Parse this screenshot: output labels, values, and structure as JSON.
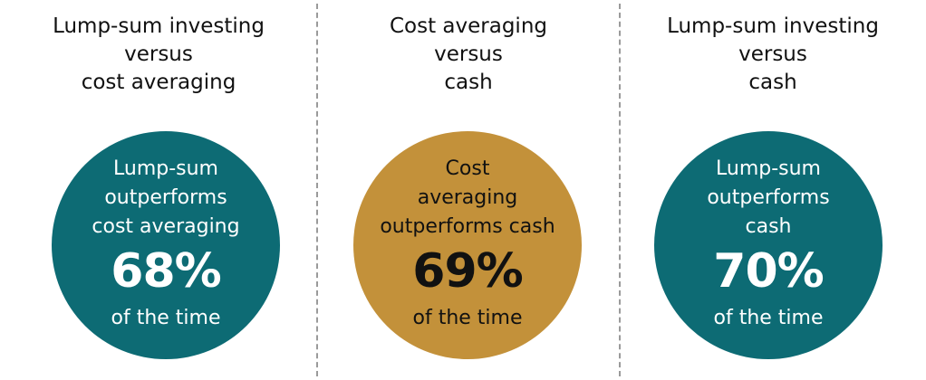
{
  "chart_data": {
    "type": "table",
    "colors": {
      "teal": "#0d6b74",
      "gold": "#c3913a",
      "divider": "#9a9a9a"
    },
    "comparisons": [
      {
        "heading": "Lump-sum investing\nversus\ncost averaging",
        "description": "Lump-sum\noutperforms\ncost averaging",
        "value": 68,
        "value_label": "68%",
        "suffix": "of the time",
        "color": "#0d6b74",
        "text_color": "#ffffff"
      },
      {
        "heading": "Cost averaging\nversus\ncash",
        "description": "Cost\naveraging\noutperforms cash",
        "value": 69,
        "value_label": "69%",
        "suffix": "of the time",
        "color": "#c3913a",
        "text_color": "#111111"
      },
      {
        "heading": "Lump-sum investing\nversus\ncash",
        "description": "Lump-sum\noutperforms\ncash",
        "value": 70,
        "value_label": "70%",
        "suffix": "of the time",
        "color": "#0d6b74",
        "text_color": "#ffffff"
      }
    ]
  }
}
